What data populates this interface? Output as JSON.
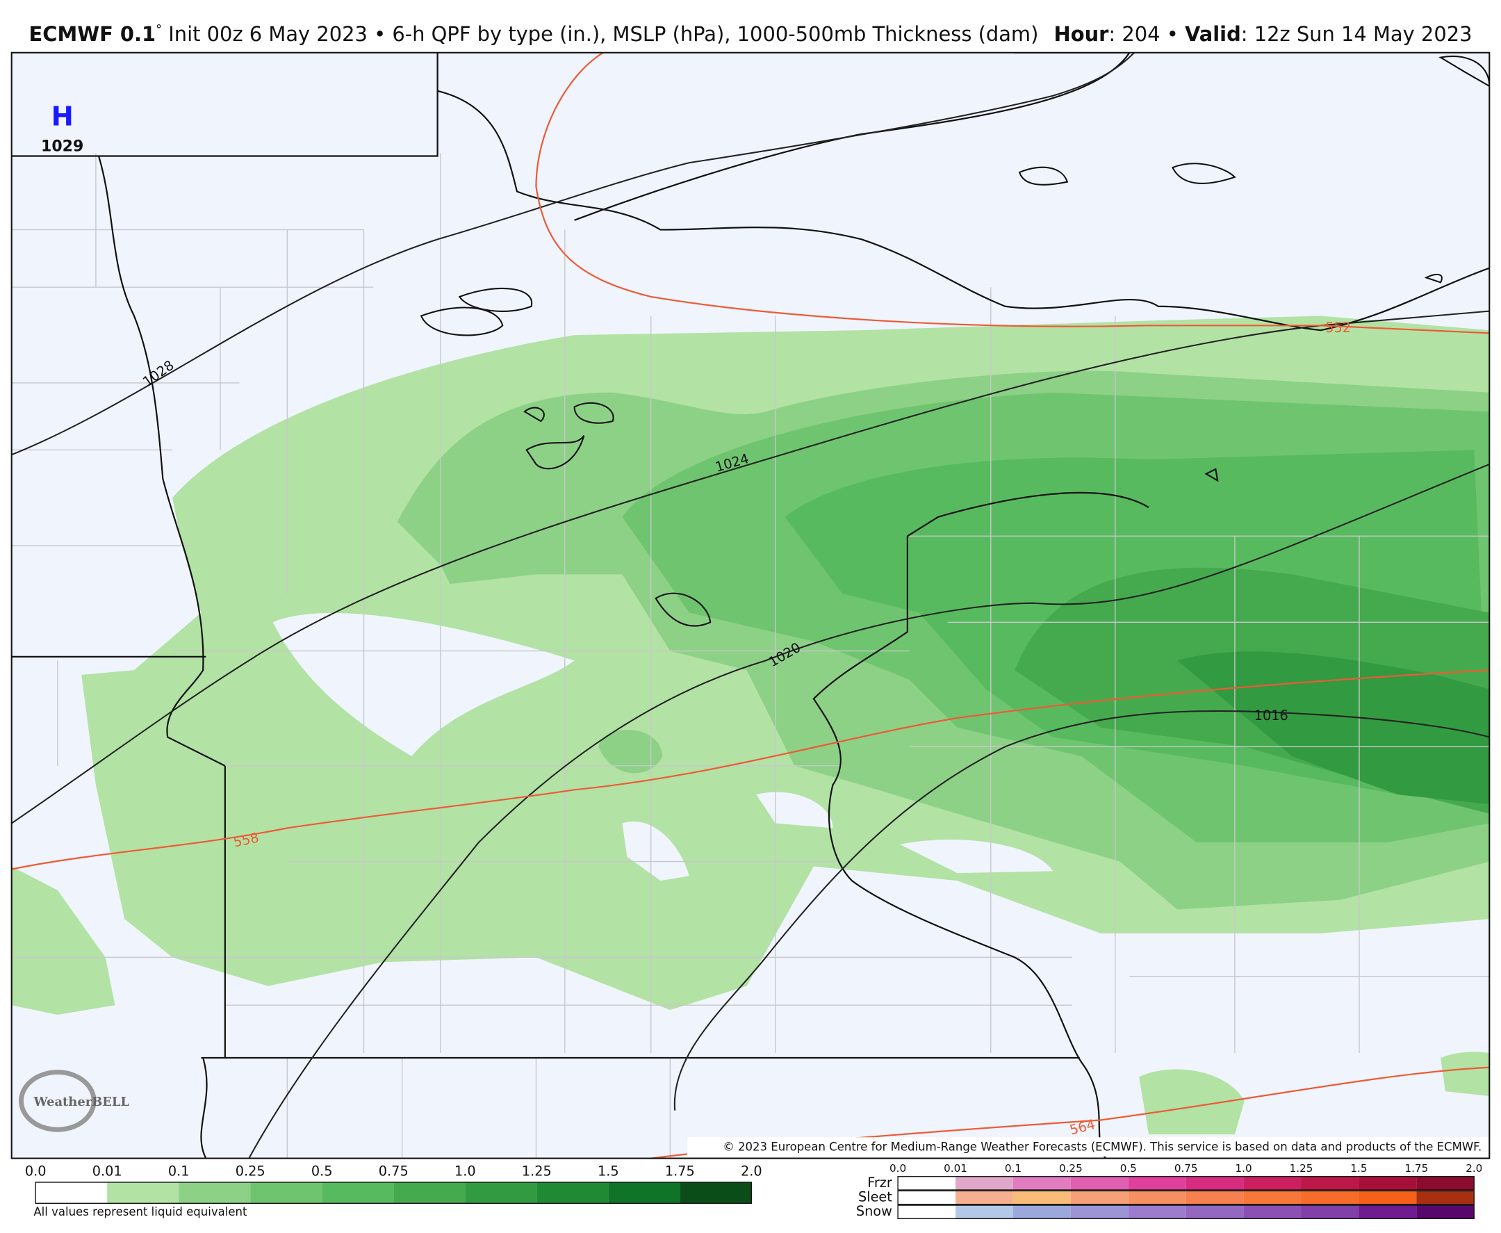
{
  "header": {
    "model": "ECMWF 0.1",
    "degree": "°",
    "init": " Init 00z 6 May 2023",
    "separator": " • ",
    "product": "6-h QPF by type (in.), MSLP (hPa), 1000-500mb Thickness (dam)",
    "hour_label": "Hour",
    "hour": ": 204",
    "valid_label": "Valid",
    "valid": ": 12z Sun 14 May 2023"
  },
  "map": {
    "high_letter": "H",
    "high_value": "1029",
    "isobar_labels": [
      "1028",
      "1024",
      "1020",
      "1016"
    ],
    "thickness_labels": [
      "552",
      "558",
      "564"
    ],
    "copyright": "© 2023 European Centre for Medium-Range Weather Forecasts (ECMWF). This service is based on data and products of the ECMWF.",
    "logo": "WeatherBELL"
  },
  "legend": {
    "qpf": {
      "ticks": [
        "0.0",
        "0.01",
        "0.1",
        "0.25",
        "0.5",
        "0.75",
        "1.0",
        "1.25",
        "1.5",
        "1.75",
        "2.0"
      ],
      "colors": [
        "#ffffff",
        "#b2e2a4",
        "#8dd186",
        "#6fc56f",
        "#58ba5e",
        "#45aa4d",
        "#329a40",
        "#1f8a33",
        "#0f7428",
        "#0a4d18"
      ],
      "note": "All values represent liquid equivalent"
    },
    "ptype": {
      "ticks": [
        "0.0",
        "0.01",
        "0.1",
        "0.25",
        "0.5",
        "0.75",
        "1.0",
        "1.25",
        "1.5",
        "1.75",
        "2.0"
      ],
      "rows": [
        {
          "name": "Frzr",
          "colors": [
            "#ffffff",
            "#dfa8c8",
            "#e27cc0",
            "#df5fb0",
            "#df409c",
            "#d72c80",
            "#cb1f60",
            "#bb1848",
            "#a71038",
            "#8b0c2c"
          ]
        },
        {
          "name": "Sleet",
          "colors": [
            "#ffffff",
            "#f6b090",
            "#f8bc78",
            "#f6a078",
            "#f79060",
            "#f68050",
            "#f77838",
            "#f66c28",
            "#f66018",
            "#a83010"
          ]
        },
        {
          "name": "Snow",
          "colors": [
            "#ffffff",
            "#b4c8e8",
            "#9ca8dc",
            "#9c94d4",
            "#9c7ccc",
            "#9468c0",
            "#8c50b4",
            "#8040a8",
            "#701c90",
            "#58086c"
          ]
        }
      ]
    }
  }
}
